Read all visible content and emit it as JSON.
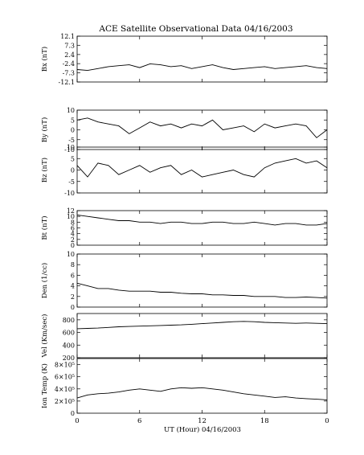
{
  "chart_data": {
    "type": "line",
    "title": "ACE Satellite Observational Data   04/16/2003",
    "xlabel": "UT (Hour)   04/16/2003",
    "x_tick_labels": [
      "0",
      "6",
      "12",
      "18",
      "0"
    ],
    "x_range_hours": [
      0,
      24
    ],
    "grid": false,
    "panels": [
      {
        "ylabel": "Bx (nT)",
        "ylim": [
          -12.1,
          12.1
        ],
        "y_ticks": [
          12.1,
          7.3,
          2.4,
          -2.4,
          -7.3,
          -12.1
        ],
        "y_tick_labels": [
          "12.1",
          "7.3",
          "2.4",
          "-2.4",
          "-7.3",
          "-12.1"
        ],
        "series": [
          {
            "values": [
              -5.5,
              -6.0,
              -5.0,
              -4.0,
              -3.5,
              -3.0,
              -4.5,
              -2.5,
              -3.0,
              -4.0,
              -3.5,
              -5.0,
              -4.0,
              -3.0,
              -4.5,
              -5.5,
              -5.0,
              -4.5,
              -4.0,
              -5.0,
              -4.5,
              -4.0,
              -3.5,
              -4.5,
              -5.0
            ]
          }
        ]
      },
      {
        "ylabel": "By (nT)",
        "ylim": [
          -10,
          10
        ],
        "y_ticks": [
          10,
          5,
          0,
          -5,
          -10
        ],
        "y_tick_labels": [
          "10",
          "5",
          "0",
          "-5",
          "-10"
        ],
        "series": [
          {
            "values": [
              5,
              6,
              4,
              3,
              2,
              -2,
              1,
              4,
              2,
              3,
              1,
              3,
              2,
              5,
              0,
              1,
              2,
              -1,
              3,
              1,
              2,
              3,
              2,
              -4,
              0
            ]
          }
        ]
      },
      {
        "ylabel": "Bz (nT)",
        "ylim": [
          -10,
          10
        ],
        "y_ticks": [
          10,
          5,
          0,
          -5,
          -10
        ],
        "y_tick_labels": [
          "10",
          "5",
          "0",
          "-5",
          "-10"
        ],
        "series": [
          {
            "values": [
              2,
              -3,
              3,
              2,
              -2,
              0,
              2,
              -1,
              1,
              2,
              -2,
              0,
              -3,
              -2,
              -1,
              0,
              -2,
              -3,
              1,
              3,
              4,
              5,
              3,
              4,
              1
            ]
          }
        ]
      },
      {
        "ylabel": "Bt (nT)",
        "ylim": [
          0,
          12
        ],
        "y_ticks": [
          12,
          10,
          8,
          6,
          4,
          2,
          0
        ],
        "y_tick_labels": [
          "12",
          "10",
          "8",
          "6",
          "4",
          "2",
          "0"
        ],
        "series": [
          {
            "values": [
              10.5,
              10.0,
              9.5,
              9.0,
              8.5,
              8.5,
              8.0,
              8.0,
              7.5,
              8.0,
              8.0,
              7.5,
              7.5,
              8.0,
              8.0,
              7.5,
              7.5,
              8.0,
              7.5,
              7.0,
              7.5,
              7.5,
              7.0,
              7.0,
              7.5
            ]
          }
        ]
      },
      {
        "ylabel": "Den (1/cc)",
        "ylim": [
          0,
          10
        ],
        "y_ticks": [
          10,
          8,
          6,
          4,
          2,
          0
        ],
        "y_tick_labels": [
          "10",
          "8",
          "6",
          "4",
          "2",
          "0"
        ],
        "series": [
          {
            "values": [
              4.5,
              4.0,
              3.5,
              3.5,
              3.2,
              3.0,
              3.0,
              3.0,
              2.8,
              2.8,
              2.6,
              2.5,
              2.5,
              2.3,
              2.3,
              2.2,
              2.2,
              2.0,
              2.0,
              2.0,
              1.8,
              1.8,
              1.9,
              1.8,
              1.7
            ]
          }
        ]
      },
      {
        "ylabel": "Vel (Km/sec)",
        "ylim": [
          200,
          900
        ],
        "y_ticks": [
          800,
          600,
          400,
          200
        ],
        "y_tick_labels": [
          "800",
          "600",
          "400",
          "200"
        ],
        "series": [
          {
            "values": [
              660,
              665,
              670,
              680,
              690,
              695,
              700,
              705,
              710,
              715,
              720,
              730,
              740,
              750,
              760,
              770,
              775,
              770,
              760,
              755,
              750,
              745,
              750,
              745,
              740
            ]
          }
        ]
      },
      {
        "ylabel": "Ion Temp (K)",
        "ylim": [
          0,
          900000
        ],
        "y_ticks": [
          800000,
          600000,
          400000,
          200000,
          0
        ],
        "y_tick_labels": [
          "8×10⁵",
          "6×10⁵",
          "4×10⁵",
          "2×10⁵",
          "0"
        ],
        "series": [
          {
            "values": [
              250000,
              300000,
              320000,
              330000,
              350000,
              380000,
              400000,
              380000,
              360000,
              400000,
              420000,
              410000,
              420000,
              400000,
              380000,
              350000,
              320000,
              300000,
              280000,
              260000,
              270000,
              250000,
              240000,
              230000,
              220000
            ]
          }
        ]
      }
    ]
  }
}
